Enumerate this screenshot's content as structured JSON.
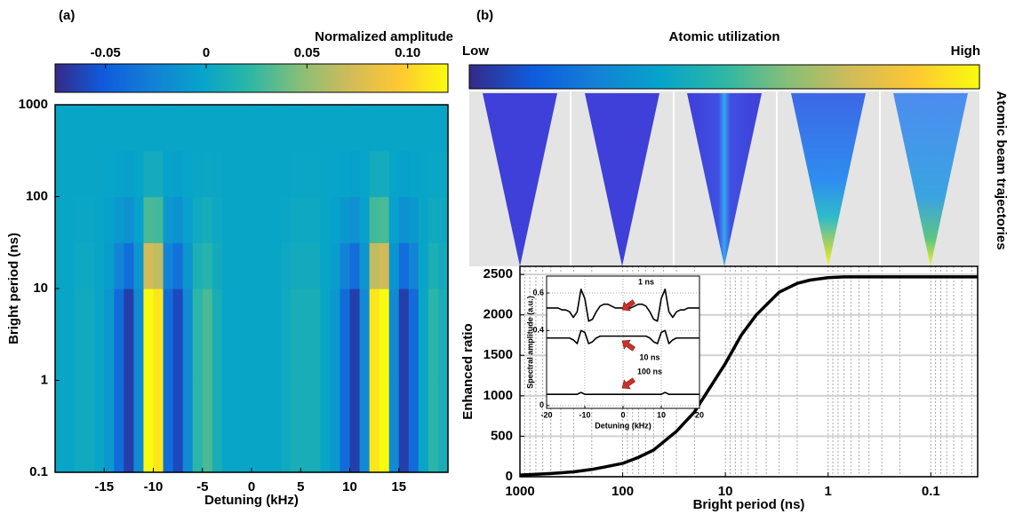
{
  "chart_data": [
    {
      "type": "heatmap",
      "panel_label": "(a)",
      "colorbar_title": "Normalized amplitude",
      "clim": [
        -0.075,
        0.12
      ],
      "cticks": [
        -0.05,
        0,
        0.05,
        {
          "value": 0.1,
          "label": "0.10"
        }
      ],
      "xlabel": "Detuning (kHz)",
      "ylabel": "Bright period (ns)",
      "xlim": [
        -20,
        20
      ],
      "xticks": [
        -15,
        -10,
        -5,
        0,
        5,
        10,
        15
      ],
      "ylim": [
        0.1,
        1000
      ],
      "yticks": [
        0.1,
        1,
        10,
        100,
        1000
      ],
      "ylog": true,
      "xbins": [
        -20,
        -19,
        -18,
        -17,
        -16,
        -15,
        -14,
        -13,
        -12,
        -11,
        -10,
        -9,
        -8,
        -7,
        -6,
        -5,
        -4,
        -3,
        -2,
        -1,
        0,
        1,
        2,
        3,
        4,
        5,
        6,
        7,
        8,
        9,
        10,
        11,
        12,
        13,
        14,
        15,
        16,
        17,
        18,
        19,
        20
      ],
      "ybins": [
        0.1,
        1,
        10,
        31.6,
        100,
        316,
        1000
      ],
      "z": [
        [
          0,
          0,
          0.005,
          0.005,
          0,
          -0.01,
          -0.04,
          -0.065,
          -0.02,
          0.12,
          0.11,
          -0.04,
          -0.06,
          -0.02,
          0.02,
          0.03,
          0.01,
          0,
          0,
          0,
          0,
          0,
          0,
          0.005,
          0.01,
          0.01,
          0.01,
          0,
          -0.01,
          -0.04,
          -0.065,
          -0.02,
          0.11,
          0.12,
          -0.02,
          -0.065,
          -0.04,
          0,
          0.02,
          0.01
        ],
        [
          0,
          0,
          0.005,
          0.005,
          0,
          -0.01,
          -0.04,
          -0.065,
          -0.02,
          0.12,
          0.11,
          -0.04,
          -0.06,
          -0.02,
          0.02,
          0.03,
          0.01,
          0,
          0,
          0,
          0,
          0,
          0,
          0.005,
          0.01,
          0.01,
          0.01,
          0,
          -0.01,
          -0.04,
          -0.065,
          -0.02,
          0.11,
          0.12,
          -0.02,
          -0.065,
          -0.04,
          0,
          0.02,
          0.01
        ],
        [
          0,
          0,
          0.003,
          0.003,
          0,
          -0.006,
          -0.024,
          -0.039,
          -0.012,
          0.072,
          0.066,
          -0.024,
          -0.036,
          -0.012,
          0.012,
          0.018,
          0.006,
          0,
          0,
          0,
          0,
          0,
          0,
          0.003,
          0.006,
          0.006,
          0.006,
          0,
          -0.006,
          -0.024,
          -0.039,
          -0.012,
          0.066,
          0.072,
          -0.012,
          -0.039,
          -0.024,
          0,
          0.012,
          0.006
        ],
        [
          0,
          0,
          0.001,
          0.001,
          0,
          -0.003,
          -0.01,
          -0.016,
          -0.005,
          0.03,
          0.028,
          -0.01,
          -0.015,
          -0.005,
          0.005,
          0.008,
          0.003,
          0,
          0,
          0,
          0,
          0,
          0,
          0.001,
          0.003,
          0.003,
          0.003,
          0,
          -0.003,
          -0.01,
          -0.016,
          -0.005,
          0.028,
          0.03,
          -0.005,
          -0.016,
          -0.01,
          0,
          0.005,
          0.003
        ],
        [
          0,
          0,
          0,
          0,
          0,
          -0.001,
          -0.002,
          -0.004,
          -0.001,
          0.007,
          0.007,
          -0.002,
          -0.004,
          -0.001,
          0.001,
          0.002,
          0.001,
          0,
          0,
          0,
          0,
          0,
          0,
          0,
          0.001,
          0.001,
          0.001,
          0,
          -0.001,
          -0.002,
          -0.004,
          -0.001,
          0.007,
          0.007,
          -0.001,
          -0.004,
          -0.002,
          0,
          0.001,
          0.001
        ],
        [
          0,
          0,
          0,
          0,
          0,
          0,
          0,
          0,
          0,
          0,
          0,
          0,
          0,
          0,
          0,
          0,
          0,
          0,
          0,
          0,
          0,
          0,
          0,
          0,
          0,
          0,
          0,
          0,
          0,
          0,
          0,
          0,
          0,
          0,
          0,
          0,
          0,
          0,
          0,
          0
        ]
      ]
    },
    {
      "type": "line",
      "panel_label": "(b)",
      "colorbar_title": "Atomic utilization",
      "colorbar_low": "Low",
      "colorbar_high": "High",
      "side_label": "Atomic beam trajectories",
      "xlabel": "Bright period (ns)",
      "ylabel": "Enhanced ratio",
      "xlog": true,
      "xlim": [
        1000,
        0.035
      ],
      "xticks": [
        1000,
        100,
        10,
        1,
        0.1
      ],
      "ylim": [
        0,
        2600
      ],
      "yticks": [
        0,
        500,
        1000,
        1500,
        2000,
        2500
      ],
      "grid": true,
      "color": "#000000",
      "x": [
        1000,
        700,
        500,
        300,
        200,
        150,
        100,
        70,
        50,
        30,
        20,
        15,
        10,
        7,
        5,
        3,
        2,
        1.5,
        1,
        0.7,
        0.5,
        0.2,
        0.1,
        0.035
      ],
      "values": [
        20,
        30,
        40,
        60,
        90,
        120,
        165,
        240,
        330,
        560,
        800,
        1050,
        1400,
        1750,
        2000,
        2280,
        2390,
        2430,
        2460,
        2470,
        2470,
        2470,
        2470,
        2470
      ]
    },
    {
      "type": "line",
      "inset": true,
      "xlabel": "Detuning (kHz)",
      "ylabel": "Spectral amplitude (a.u.)",
      "xlim": [
        -20,
        20
      ],
      "xticks": [
        -20,
        -10,
        0,
        10,
        20
      ],
      "ylim": [
        -0.015,
        0.69
      ],
      "yticks": [
        0,
        0.4,
        0.6
      ],
      "grid": true,
      "x": [
        -20,
        -19,
        -18,
        -17,
        -16,
        -15,
        -14,
        -13,
        -12,
        -11,
        -10,
        -9,
        -8,
        -7,
        -6,
        -5,
        -4,
        -3,
        -2,
        -1,
        0,
        1,
        2,
        3,
        4,
        5,
        6,
        7,
        8,
        9,
        10,
        11,
        12,
        13,
        14,
        15,
        16,
        17,
        18,
        19,
        20
      ],
      "series": [
        {
          "name": "1 ns",
          "color": "#000000",
          "values": [
            0.52,
            0.52,
            0.52,
            0.52,
            0.51,
            0.51,
            0.5,
            0.47,
            0.5,
            0.62,
            0.57,
            0.45,
            0.46,
            0.5,
            0.53,
            0.54,
            0.54,
            0.53,
            0.52,
            0.52,
            0.52,
            0.52,
            0.52,
            0.53,
            0.54,
            0.54,
            0.53,
            0.5,
            0.46,
            0.45,
            0.57,
            0.62,
            0.5,
            0.47,
            0.5,
            0.51,
            0.51,
            0.52,
            0.52,
            0.52,
            0.52
          ]
        },
        {
          "name": "10 ns",
          "color": "#000000",
          "values": [
            0.36,
            0.36,
            0.36,
            0.36,
            0.36,
            0.36,
            0.36,
            0.35,
            0.33,
            0.4,
            0.39,
            0.33,
            0.34,
            0.36,
            0.37,
            0.37,
            0.37,
            0.37,
            0.37,
            0.37,
            0.37,
            0.37,
            0.37,
            0.37,
            0.37,
            0.37,
            0.37,
            0.36,
            0.34,
            0.33,
            0.39,
            0.4,
            0.33,
            0.35,
            0.36,
            0.36,
            0.36,
            0.36,
            0.36,
            0.36,
            0.36
          ]
        },
        {
          "name": "100 ns",
          "color": "#000000",
          "values": [
            0.06,
            0.06,
            0.06,
            0.06,
            0.06,
            0.06,
            0.06,
            0.06,
            0.06,
            0.07,
            0.06,
            0.06,
            0.06,
            0.06,
            0.06,
            0.06,
            0.06,
            0.06,
            0.06,
            0.06,
            0.06,
            0.06,
            0.06,
            0.06,
            0.06,
            0.06,
            0.06,
            0.06,
            0.06,
            0.06,
            0.06,
            0.07,
            0.06,
            0.06,
            0.06,
            0.06,
            0.06,
            0.06,
            0.06,
            0.06,
            0.06
          ]
        }
      ]
    }
  ]
}
